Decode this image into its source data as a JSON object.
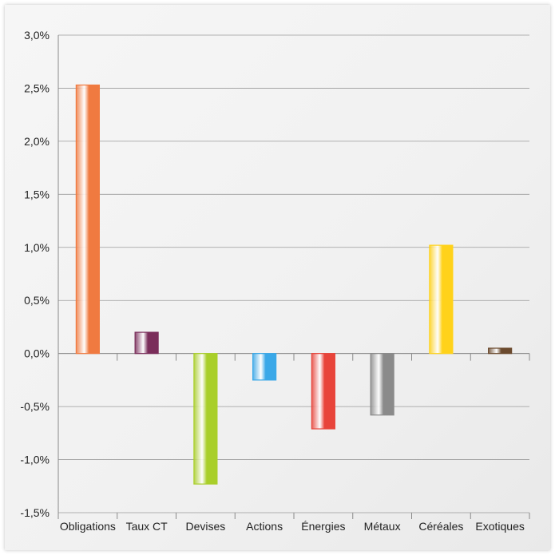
{
  "chart_data": {
    "type": "bar",
    "categories": [
      "Obligations",
      "Taux CT",
      "Devises",
      "Actions",
      "Énergies",
      "Métaux",
      "Céréales",
      "Exotiques"
    ],
    "values": [
      2.53,
      0.2,
      -1.23,
      -0.25,
      -0.71,
      -0.58,
      1.02,
      0.05
    ],
    "ylim": [
      -1.5,
      3.0
    ],
    "yticks": [
      3.0,
      2.5,
      2.0,
      1.5,
      1.0,
      0.5,
      0.0,
      -0.5,
      -1.0,
      -1.5
    ],
    "ytick_labels": [
      "3,0%",
      "2,5%",
      "2,0%",
      "1,5%",
      "1,0%",
      "0,5%",
      "0,0%",
      "-0,5%",
      "-1,0%",
      "-1,5%"
    ],
    "grid": true,
    "colors": [
      "#f07a40",
      "#7a2d5a",
      "#a9cf2a",
      "#3aa8e8",
      "#e8443a",
      "#8a8a8a",
      "#ffd21a",
      "#6b4a2e"
    ]
  }
}
